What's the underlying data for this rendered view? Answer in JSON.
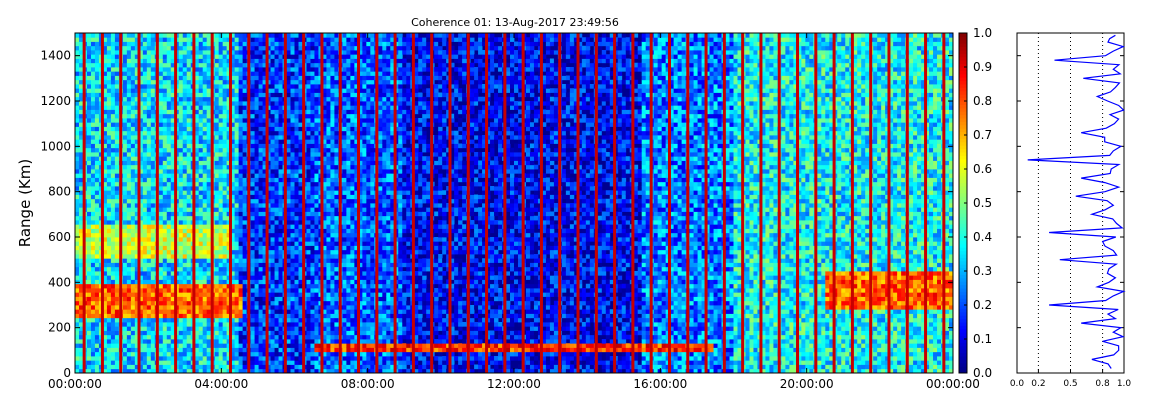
{
  "chart_data": [
    {
      "type": "heatmap",
      "title": "Coherence 01: 13-Aug-2017 23:49:56",
      "xlabel": "",
      "ylabel": "Range (Km)",
      "x_ticks": [
        "00:00:00",
        "04:00:00",
        "08:00:00",
        "12:00:00",
        "16:00:00",
        "20:00:00",
        "00:00:00"
      ],
      "y_ticks": [
        0,
        200,
        400,
        600,
        800,
        1000,
        1200,
        1400
      ],
      "ylim": [
        0,
        1500
      ],
      "xlim_hours": [
        0,
        24
      ],
      "colormap": "jet",
      "colorbar": {
        "range": [
          0.0,
          1.0
        ],
        "ticks": [
          "0.0",
          "0.1",
          "0.2",
          "0.3",
          "0.4",
          "0.5",
          "0.6",
          "0.7",
          "0.8",
          "0.9",
          "1.0"
        ]
      },
      "features": {
        "periodic_high_coherence_lines_every_hours": 0.5,
        "echo_layers_km": [
          {
            "hours": [
              0,
              4.6
            ],
            "range_km": [
              250,
              400
            ],
            "value": 0.9
          },
          {
            "hours": [
              0,
              4.2
            ],
            "range_km": [
              500,
              650
            ],
            "value": 0.7
          },
          {
            "hours": [
              6.5,
              17.5
            ],
            "range_km": [
              100,
              130
            ],
            "value": 0.95
          },
          {
            "hours": [
              20.5,
              24
            ],
            "range_km": [
              280,
              450
            ],
            "value": 0.9
          }
        ]
      },
      "grid": false
    },
    {
      "type": "line",
      "title": "",
      "xlabel": "",
      "ylabel": "",
      "x_ticks": [
        "0.0",
        "0.2",
        "0.5",
        "0.8",
        "1.0"
      ],
      "xlim": [
        0.0,
        1.0
      ],
      "ylim": [
        0,
        1500
      ],
      "series": [
        {
          "color": "#0000ff",
          "range_km": [
            20,
            60,
            100,
            140,
            180,
            220,
            260,
            300,
            340,
            380,
            420,
            460,
            500,
            540,
            580,
            620,
            660,
            700,
            740,
            780,
            820,
            860,
            900,
            940,
            980,
            1020,
            1060,
            1100,
            1140,
            1180,
            1220,
            1260,
            1300,
            1340,
            1380,
            1420,
            1460,
            1490
          ],
          "values": [
            0.88,
            0.7,
            0.95,
            0.8,
            0.9,
            0.6,
            0.85,
            0.3,
            0.9,
            0.75,
            0.92,
            0.86,
            0.4,
            0.9,
            0.8,
            0.3,
            0.93,
            0.7,
            0.9,
            0.55,
            0.95,
            0.6,
            0.88,
            0.1,
            0.9,
            0.82,
            0.6,
            0.91,
            0.87,
            0.95,
            0.75,
            0.92,
            0.62,
            0.9,
            0.35,
            0.9,
            0.85,
            0.92
          ]
        }
      ],
      "gridlines_x": [
        0.2,
        0.5,
        0.8
      ]
    }
  ]
}
